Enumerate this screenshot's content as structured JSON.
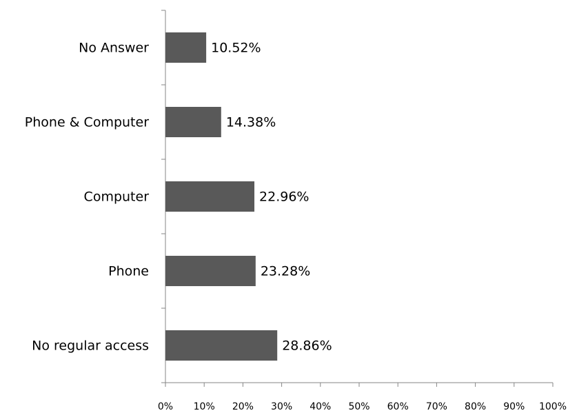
{
  "chart_data": {
    "type": "bar",
    "orientation": "horizontal",
    "categories": [
      "No Answer",
      "Phone & Computer",
      "Computer",
      "Phone",
      "No regular access"
    ],
    "values": [
      10.52,
      14.38,
      22.96,
      23.28,
      28.86
    ],
    "value_labels": [
      "10.52%",
      "14.38%",
      "22.96%",
      "23.28%",
      "28.86%"
    ],
    "color": "#595959",
    "xlim": [
      0,
      100
    ],
    "xticks": [
      {
        "value": 0,
        "label": "0%"
      },
      {
        "value": 10,
        "label": "10%"
      },
      {
        "value": 20,
        "label": "20%"
      },
      {
        "value": 30,
        "label": "30%"
      },
      {
        "value": 40,
        "label": "40%"
      },
      {
        "value": 50,
        "label": "50%"
      },
      {
        "value": 60,
        "label": "60%"
      },
      {
        "value": 70,
        "label": "70%"
      },
      {
        "value": 80,
        "label": "80%"
      },
      {
        "value": 90,
        "label": "90%"
      },
      {
        "value": 100,
        "label": "100%"
      }
    ],
    "grid": false
  }
}
